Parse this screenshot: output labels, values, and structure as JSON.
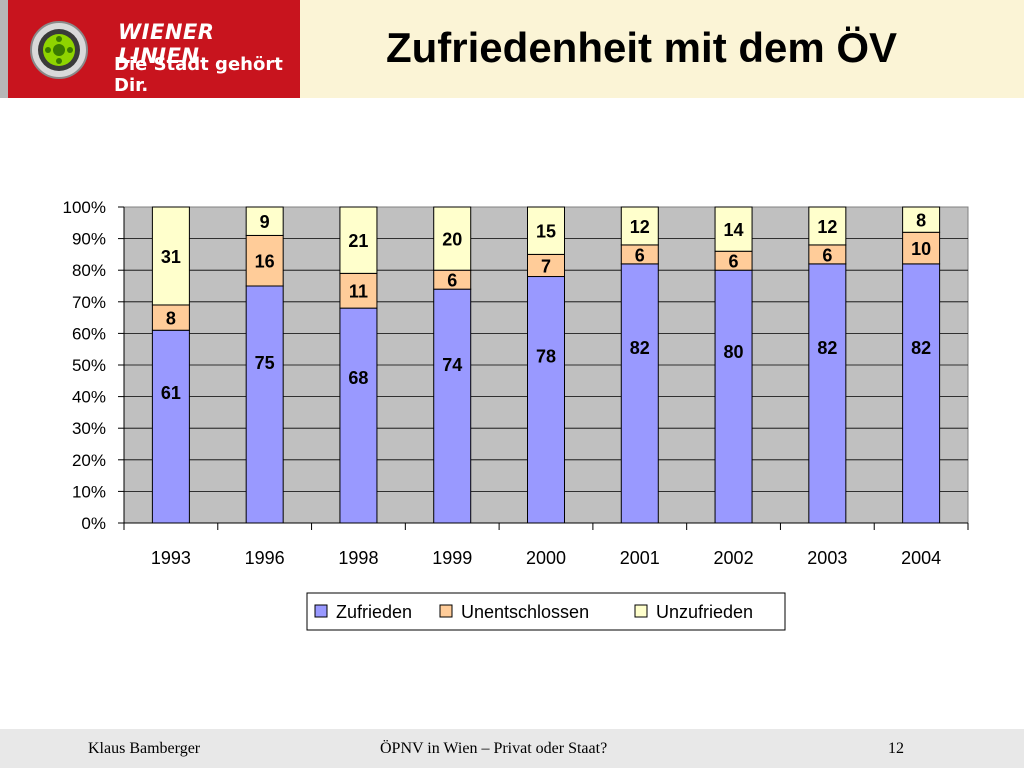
{
  "header": {
    "logo_brand": "WIENER LINIEN",
    "logo_slogan": "Die Stadt gehört Dir.",
    "title": "Zufriedenheit mit dem ÖV"
  },
  "chart_data": {
    "type": "bar",
    "stacked": true,
    "title": "",
    "xlabel": "",
    "ylabel": "",
    "ylim": [
      0,
      100
    ],
    "y_ticks": [
      "0%",
      "10%",
      "20%",
      "30%",
      "40%",
      "50%",
      "60%",
      "70%",
      "80%",
      "90%",
      "100%"
    ],
    "categories": [
      "1993",
      "1996",
      "1998",
      "1999",
      "2000",
      "2001",
      "2002",
      "2003",
      "2004"
    ],
    "series": [
      {
        "name": "Zufrieden",
        "color": "#9999ff",
        "values": [
          61,
          75,
          68,
          74,
          78,
          82,
          80,
          82,
          82
        ]
      },
      {
        "name": "Unentschlossen",
        "color": "#ffcc99",
        "values": [
          8,
          16,
          11,
          6,
          7,
          6,
          6,
          6,
          10
        ]
      },
      {
        "name": "Unzufrieden",
        "color": "#ffffcc",
        "values": [
          31,
          9,
          21,
          20,
          15,
          12,
          14,
          12,
          8
        ]
      }
    ],
    "grid": true,
    "plot_background": "#c0c0c0",
    "legend_position": "bottom"
  },
  "footer": {
    "author": "Klaus Bamberger",
    "topic": "ÖPNV in Wien – Privat oder Staat?",
    "page": "12"
  }
}
